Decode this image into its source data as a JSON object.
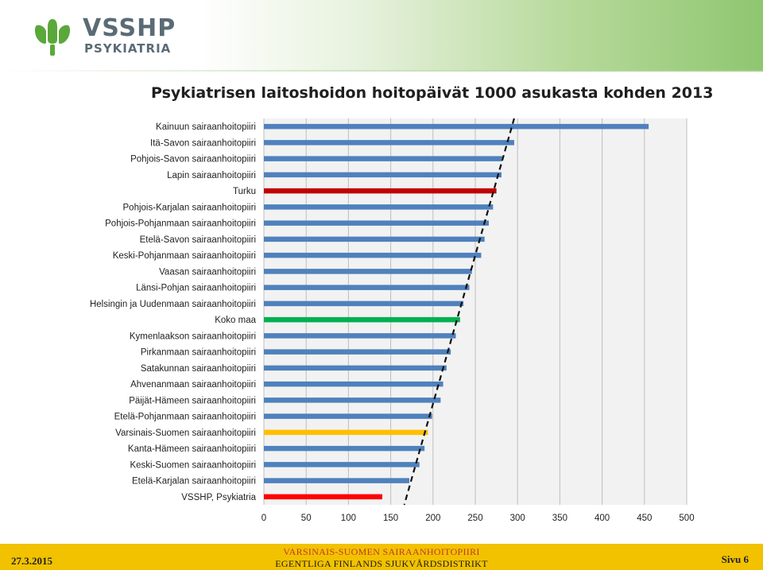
{
  "header": {
    "logo_name": "VSSHP",
    "logo_sub": "PSYKIATRIA",
    "logo_icon": "tree-leaf-logo",
    "accent_color": "#5aa83a"
  },
  "chart_data": {
    "type": "bar",
    "orientation": "horizontal",
    "title": "Psykiatrisen laitoshoidon hoitopäivät 1000 asukasta kohden 2013",
    "xlabel": "",
    "ylabel": "",
    "xlim": [
      0,
      500
    ],
    "xticks": [
      0,
      50,
      100,
      150,
      200,
      250,
      300,
      350,
      400,
      450,
      500
    ],
    "grid": true,
    "legend": "none",
    "categories": [
      "Kainuun sairaanhoitopiiri",
      "Itä-Savon sairaanhoitopiiri",
      "Pohjois-Savon sairaanhoitopiiri",
      "Lapin sairaanhoitopiiri",
      "Turku",
      "Pohjois-Karjalan sairaanhoitopiiri",
      "Pohjois-Pohjanmaan sairaanhoitopiiri",
      "Etelä-Savon sairaanhoitopiiri",
      "Keski-Pohjanmaan sairaanhoitopiiri",
      "Vaasan sairaanhoitopiiri",
      "Länsi-Pohjan sairaanhoitopiiri",
      "Helsingin ja Uudenmaan sairaanhoitopiiri",
      "Koko maa",
      "Kymenlaakson sairaanhoitopiiri",
      "Pirkanmaan sairaanhoitopiiri",
      "Satakunnan sairaanhoitopiiri",
      "Ahvenanmaan sairaanhoitopiiri",
      "Päijät-Hämeen sairaanhoitopiiri",
      "Etelä-Pohjanmaan sairaanhoitopiiri",
      "Varsinais-Suomen sairaanhoitopiiri",
      "Kanta-Hämeen sairaanhoitopiiri",
      "Keski-Suomen sairaanhoitopiiri",
      "Etelä-Karjalan sairaanhoitopiiri",
      "VSSHP, Psykiatria"
    ],
    "values": [
      455,
      296,
      282,
      281,
      275,
      271,
      266,
      261,
      257,
      246,
      243,
      236,
      232,
      227,
      221,
      216,
      212,
      209,
      199,
      194,
      190,
      184,
      172,
      140
    ],
    "colors": [
      "#4f81bd",
      "#4f81bd",
      "#4f81bd",
      "#4f81bd",
      "#c00000",
      "#4f81bd",
      "#4f81bd",
      "#4f81bd",
      "#4f81bd",
      "#4f81bd",
      "#4f81bd",
      "#4f81bd",
      "#00b050",
      "#4f81bd",
      "#4f81bd",
      "#4f81bd",
      "#4f81bd",
      "#4f81bd",
      "#4f81bd",
      "#ffc000",
      "#4f81bd",
      "#4f81bd",
      "#4f81bd",
      "#ff0000"
    ],
    "trend_line": {
      "style": "dashed",
      "color": "#111111",
      "from": [
        296,
        0
      ],
      "to": [
        166,
        24
      ]
    }
  },
  "footer": {
    "date": "27.3.2015",
    "org_line1": "VARSINAIS-SUOMEN SAIRAANHOITOPIIRI",
    "org_line2": "EGENTLIGA FINLANDS SJUKVÅRDSDISTRIKT",
    "page": "Sivu 6",
    "background": "#f2c200"
  }
}
